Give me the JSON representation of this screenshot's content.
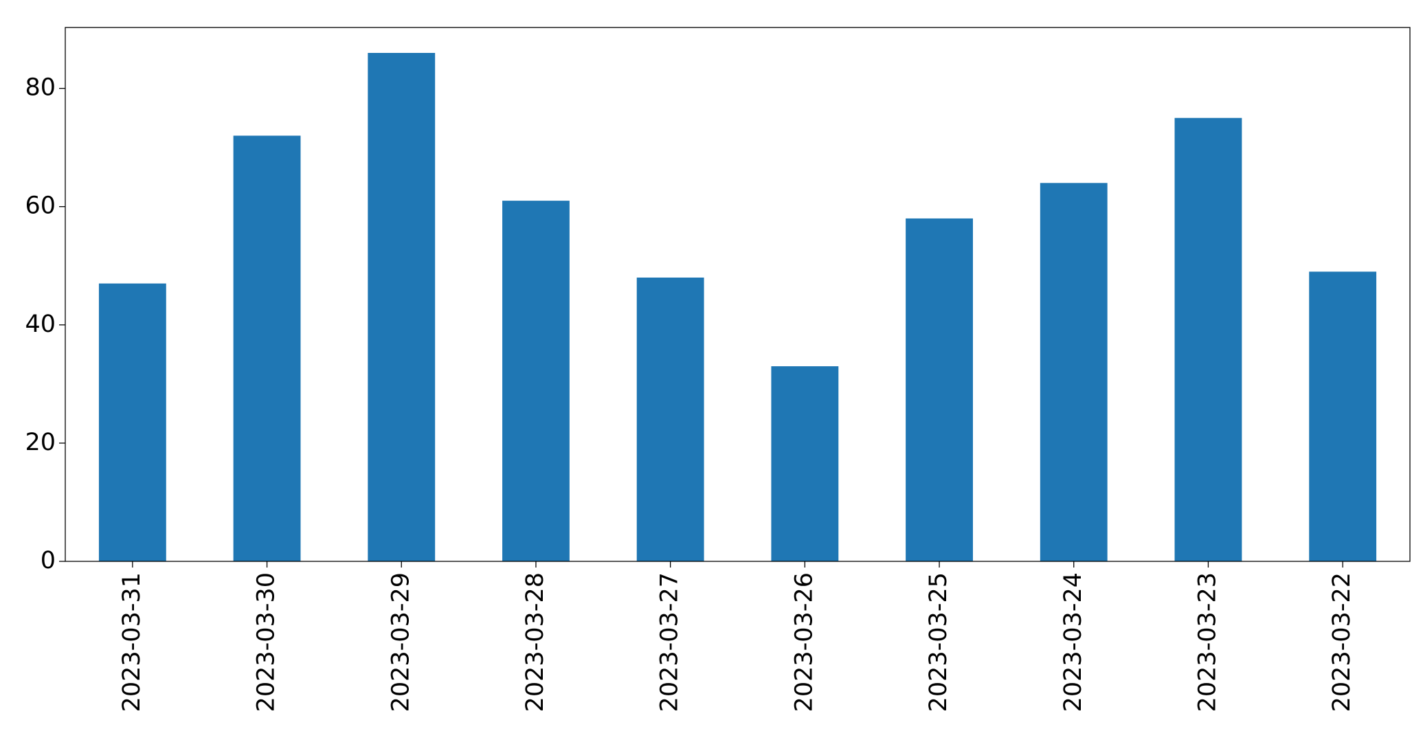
{
  "chart_data": {
    "type": "bar",
    "categories": [
      "2023-03-31",
      "2023-03-30",
      "2023-03-29",
      "2023-03-28",
      "2023-03-27",
      "2023-03-26",
      "2023-03-25",
      "2023-03-24",
      "2023-03-23",
      "2023-03-22"
    ],
    "values": [
      47,
      72,
      86,
      61,
      48,
      33,
      58,
      64,
      75,
      49
    ],
    "color": "#1f77b4",
    "ylim": [
      0,
      90.3
    ],
    "yticks": [
      0,
      20,
      40,
      60,
      80
    ],
    "grid": false
  }
}
